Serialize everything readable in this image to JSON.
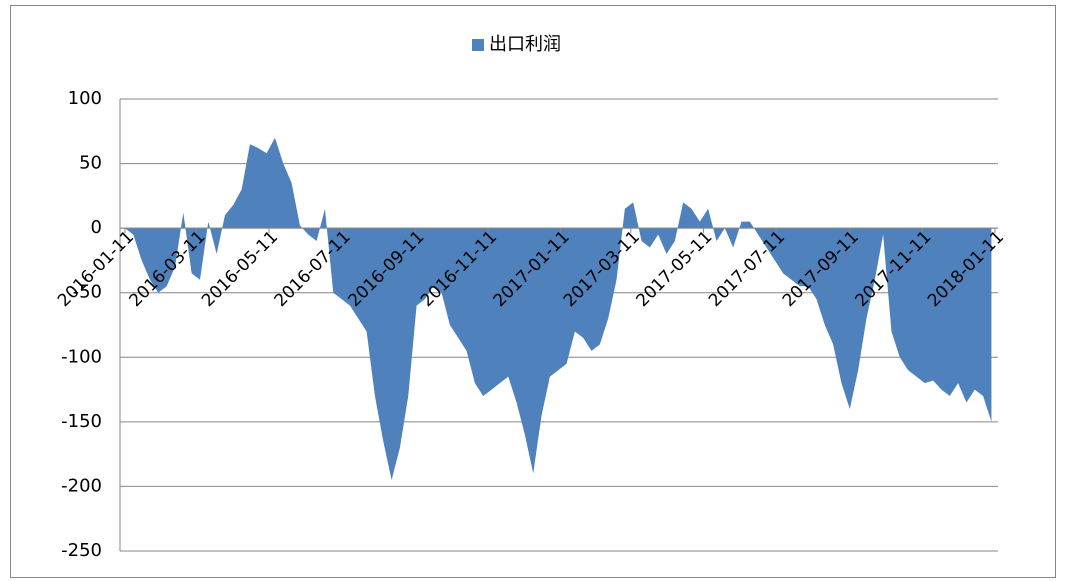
{
  "chart_data": {
    "type": "area",
    "x": [
      "2016-01-11",
      "2016-01-18",
      "2016-01-25",
      "2016-02-01",
      "2016-02-08",
      "2016-02-15",
      "2016-02-22",
      "2016-02-29",
      "2016-03-07",
      "2016-03-14",
      "2016-03-21",
      "2016-03-28",
      "2016-04-04",
      "2016-04-11",
      "2016-04-18",
      "2016-04-25",
      "2016-05-02",
      "2016-05-09",
      "2016-05-16",
      "2016-05-23",
      "2016-05-30",
      "2016-06-06",
      "2016-06-13",
      "2016-06-20",
      "2016-06-27",
      "2016-07-04",
      "2016-07-11",
      "2016-07-18",
      "2016-07-25",
      "2016-08-01",
      "2016-08-08",
      "2016-08-15",
      "2016-08-22",
      "2016-08-29",
      "2016-09-05",
      "2016-09-12",
      "2016-09-19",
      "2016-09-26",
      "2016-10-03",
      "2016-10-10",
      "2016-10-17",
      "2016-10-24",
      "2016-10-31",
      "2016-11-07",
      "2016-11-14",
      "2016-11-21",
      "2016-11-28",
      "2016-12-05",
      "2016-12-12",
      "2016-12-19",
      "2016-12-26",
      "2017-01-02",
      "2017-01-09",
      "2017-01-16",
      "2017-01-23",
      "2017-01-30",
      "2017-02-06",
      "2017-02-13",
      "2017-02-20",
      "2017-02-27",
      "2017-03-06",
      "2017-03-13",
      "2017-03-20",
      "2017-03-27",
      "2017-04-03",
      "2017-04-10",
      "2017-04-17",
      "2017-04-24",
      "2017-05-01",
      "2017-05-08",
      "2017-05-15",
      "2017-05-22",
      "2017-05-29",
      "2017-06-05",
      "2017-06-12",
      "2017-06-19",
      "2017-06-26",
      "2017-07-03",
      "2017-07-10",
      "2017-07-17",
      "2017-07-24",
      "2017-07-31",
      "2017-08-07",
      "2017-08-14",
      "2017-08-21",
      "2017-08-28",
      "2017-09-04",
      "2017-09-11",
      "2017-09-18",
      "2017-09-25",
      "2017-10-02",
      "2017-10-09",
      "2017-10-16",
      "2017-10-23",
      "2017-10-30",
      "2017-11-06",
      "2017-11-13",
      "2017-11-20",
      "2017-11-27",
      "2017-12-04",
      "2017-12-11",
      "2017-12-18",
      "2017-12-25",
      "2018-01-01",
      "2018-01-08"
    ],
    "series": [
      {
        "name": "出口利润",
        "color": "#4f81bd",
        "values": [
          0,
          -5,
          -25,
          -40,
          -50,
          -45,
          -30,
          12,
          -35,
          -40,
          5,
          -20,
          10,
          18,
          30,
          65,
          62,
          58,
          70,
          50,
          35,
          2,
          -5,
          -10,
          15,
          -50,
          -55,
          -60,
          -70,
          -80,
          -130,
          -165,
          -195,
          -170,
          -130,
          -60,
          -55,
          -45,
          -50,
          -75,
          -85,
          -95,
          -120,
          -130,
          -125,
          -120,
          -115,
          -135,
          -160,
          -190,
          -145,
          -115,
          -110,
          -105,
          -80,
          -85,
          -95,
          -90,
          -70,
          -40,
          15,
          20,
          -10,
          -15,
          -5,
          -20,
          -10,
          20,
          15,
          5,
          15,
          -10,
          0,
          -15,
          5,
          5,
          -5,
          -15,
          -25,
          -35,
          -40,
          -45,
          -45,
          -55,
          -75,
          -90,
          -120,
          -140,
          -110,
          -70,
          -40,
          -5,
          -80,
          -100,
          -110,
          -115,
          -120,
          -118,
          -125,
          -130,
          -120,
          -135,
          -125,
          -130,
          -150
        ]
      }
    ],
    "xlim": [
      "2016-01-11",
      "2018-01-11"
    ],
    "xticks": [
      "2016-01-11",
      "2016-03-11",
      "2016-05-11",
      "2016-07-11",
      "2016-09-11",
      "2016-11-11",
      "2017-01-11",
      "2017-03-11",
      "2017-05-11",
      "2017-07-11",
      "2017-09-11",
      "2017-11-11",
      "2018-01-11"
    ],
    "ylim": [
      -250,
      100
    ],
    "yticks": [
      -250,
      -200,
      -150,
      -100,
      -50,
      0,
      50,
      100
    ],
    "grid": true,
    "legend": "top"
  }
}
